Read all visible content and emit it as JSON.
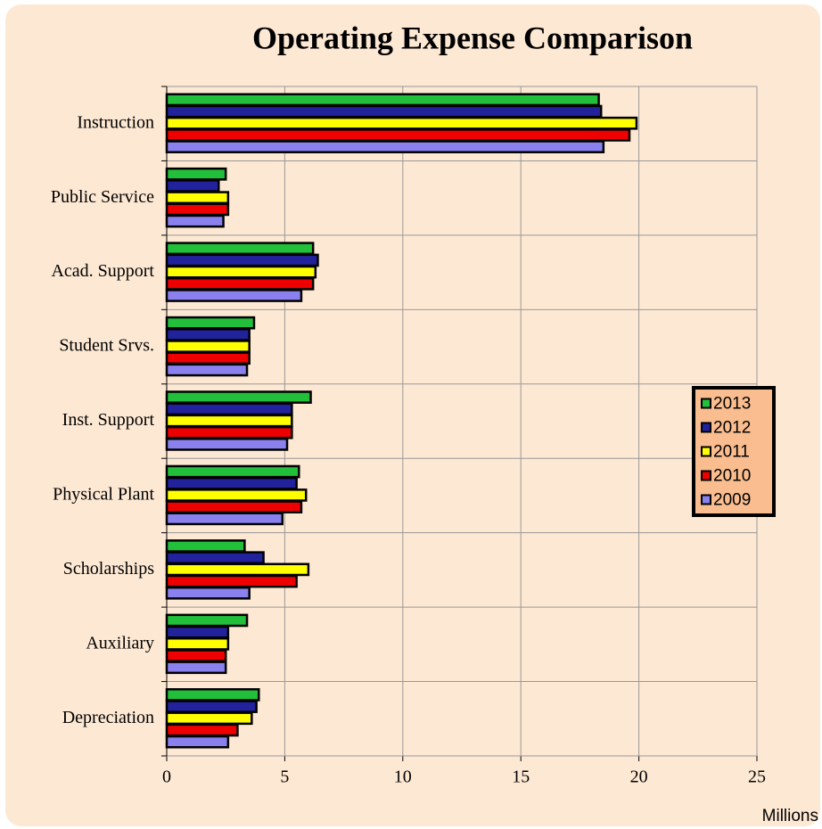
{
  "chart_data": {
    "type": "hbar",
    "title": "Operating Expense Comparison",
    "x_label": "Millions",
    "categories": [
      "Instruction",
      "Public Service",
      "Acad. Support",
      "Student Srvs.",
      "Inst. Support",
      "Physical Plant",
      "Scholarships",
      "Auxiliary",
      "Depreciation"
    ],
    "series": [
      {
        "name": "2013",
        "color": "#22c03a",
        "values": [
          18.3,
          2.5,
          6.2,
          3.7,
          6.1,
          5.6,
          3.3,
          3.4,
          3.9
        ]
      },
      {
        "name": "2012",
        "color": "#22229c",
        "values": [
          18.4,
          2.2,
          6.4,
          3.5,
          5.3,
          5.5,
          4.1,
          2.6,
          3.8
        ]
      },
      {
        "name": "2011",
        "color": "#ffff00",
        "values": [
          19.9,
          2.6,
          6.3,
          3.5,
          5.3,
          5.9,
          6.0,
          2.6,
          3.6
        ]
      },
      {
        "name": "2010",
        "color": "#ee0000",
        "values": [
          19.6,
          2.6,
          6.2,
          3.5,
          5.3,
          5.7,
          5.5,
          2.5,
          3.0
        ]
      },
      {
        "name": "2009",
        "color": "#8a80ee",
        "values": [
          18.5,
          2.4,
          5.7,
          3.4,
          5.1,
          4.9,
          3.5,
          2.5,
          2.6
        ]
      }
    ],
    "xlim": [
      0,
      25
    ],
    "xticks": [
      0,
      5,
      10,
      15,
      20,
      25
    ],
    "grid": true,
    "legend": "right"
  }
}
